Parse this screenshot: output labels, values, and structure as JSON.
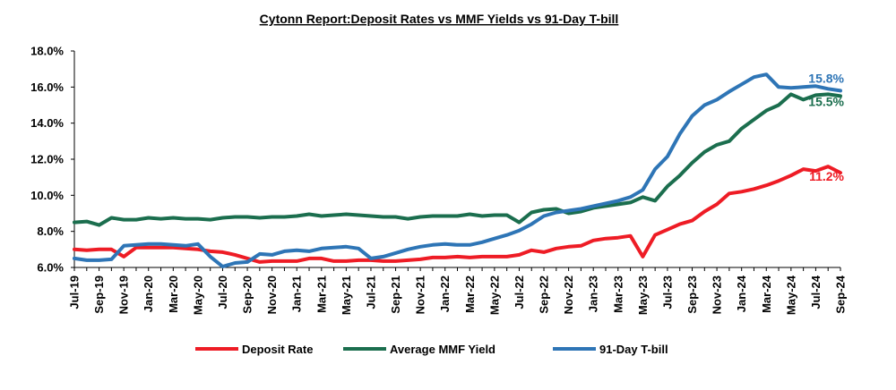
{
  "chart_data": {
    "type": "line",
    "title": "Cytonn Report:Deposit Rates vs MMF Yields vs 91-Day T-bill",
    "ylim": [
      6.0,
      18.0
    ],
    "y_ticks": [
      "6.0%",
      "8.0%",
      "10.0%",
      "12.0%",
      "14.0%",
      "16.0%",
      "18.0%"
    ],
    "y_tick_values": [
      6,
      8,
      10,
      12,
      14,
      16,
      18
    ],
    "x_tick_labels": [
      "Jul-19",
      "Sep-19",
      "Nov-19",
      "Jan-20",
      "Mar-20",
      "May-20",
      "Jul-20",
      "Sep-20",
      "Nov-20",
      "Jan-21",
      "Mar-21",
      "May-21",
      "Jul-21",
      "Sep-21",
      "Nov-21",
      "Jan-22",
      "Mar-22",
      "May-22",
      "Jul-22",
      "Sep-22",
      "Nov-22",
      "Jan-23",
      "Mar-23",
      "May-23",
      "Jul-23",
      "Sep-23",
      "Nov-23",
      "Jan-24",
      "Mar-24",
      "May-24",
      "Jul-24",
      "Sep-24"
    ],
    "categories": [
      "Jul-19",
      "Aug-19",
      "Sep-19",
      "Oct-19",
      "Nov-19",
      "Dec-19",
      "Jan-20",
      "Feb-20",
      "Mar-20",
      "Apr-20",
      "May-20",
      "Jun-20",
      "Jul-20",
      "Aug-20",
      "Sep-20",
      "Oct-20",
      "Nov-20",
      "Dec-20",
      "Jan-21",
      "Feb-21",
      "Mar-21",
      "Apr-21",
      "May-21",
      "Jun-21",
      "Jul-21",
      "Aug-21",
      "Sep-21",
      "Oct-21",
      "Nov-21",
      "Dec-21",
      "Jan-22",
      "Feb-22",
      "Mar-22",
      "Apr-22",
      "May-22",
      "Jun-22",
      "Jul-22",
      "Aug-22",
      "Sep-22",
      "Oct-22",
      "Nov-22",
      "Dec-22",
      "Jan-23",
      "Feb-23",
      "Mar-23",
      "Apr-23",
      "May-23",
      "Jun-23",
      "Jul-23",
      "Aug-23",
      "Sep-23",
      "Oct-23",
      "Nov-23",
      "Dec-23",
      "Jan-24",
      "Feb-24",
      "Mar-24",
      "Apr-24",
      "May-24",
      "Jun-24",
      "Jul-24",
      "Aug-24",
      "Sep-24"
    ],
    "series": [
      {
        "name": "Deposit Rate",
        "color": "#ee1c25",
        "end_label": "11.2%",
        "values": [
          7.0,
          6.95,
          7.0,
          7.0,
          6.6,
          7.1,
          7.1,
          7.1,
          7.1,
          7.05,
          7.0,
          6.9,
          6.85,
          6.7,
          6.5,
          6.3,
          6.35,
          6.35,
          6.35,
          6.5,
          6.5,
          6.35,
          6.35,
          6.4,
          6.4,
          6.35,
          6.35,
          6.4,
          6.45,
          6.55,
          6.55,
          6.6,
          6.55,
          6.6,
          6.6,
          6.6,
          6.7,
          6.95,
          6.85,
          7.05,
          7.15,
          7.2,
          7.5,
          7.6,
          7.65,
          7.75,
          6.6,
          7.8,
          8.1,
          8.4,
          8.6,
          9.1,
          9.5,
          10.1,
          10.2,
          10.35,
          10.55,
          10.8,
          11.1,
          11.45,
          11.35,
          11.6,
          11.25
        ]
      },
      {
        "name": "Average MMF Yield",
        "color": "#1b6e4e",
        "end_label": "15.5%",
        "values": [
          8.5,
          8.55,
          8.35,
          8.75,
          8.65,
          8.65,
          8.75,
          8.7,
          8.75,
          8.7,
          8.7,
          8.65,
          8.75,
          8.8,
          8.8,
          8.75,
          8.8,
          8.8,
          8.85,
          8.95,
          8.85,
          8.9,
          8.95,
          8.9,
          8.85,
          8.8,
          8.8,
          8.7,
          8.8,
          8.85,
          8.85,
          8.85,
          8.95,
          8.85,
          8.9,
          8.9,
          8.5,
          9.05,
          9.2,
          9.25,
          9.0,
          9.1,
          9.3,
          9.4,
          9.5,
          9.6,
          9.9,
          9.7,
          10.5,
          11.1,
          11.8,
          12.4,
          12.8,
          13.0,
          13.7,
          14.2,
          14.7,
          15.0,
          15.6,
          15.3,
          15.55,
          15.6,
          15.5
        ]
      },
      {
        "name": "91-Day T-bill",
        "color": "#2e75b6",
        "end_label": "15.8%",
        "values": [
          6.5,
          6.4,
          6.4,
          6.45,
          7.2,
          7.25,
          7.3,
          7.3,
          7.25,
          7.2,
          7.3,
          6.6,
          6.05,
          6.25,
          6.3,
          6.75,
          6.7,
          6.9,
          6.95,
          6.9,
          7.05,
          7.1,
          7.15,
          7.05,
          6.5,
          6.6,
          6.8,
          7.0,
          7.15,
          7.25,
          7.3,
          7.25,
          7.25,
          7.4,
          7.6,
          7.8,
          8.05,
          8.4,
          8.85,
          9.05,
          9.15,
          9.25,
          9.4,
          9.55,
          9.7,
          9.9,
          10.3,
          11.45,
          12.15,
          13.4,
          14.4,
          15.0,
          15.3,
          15.75,
          16.15,
          16.55,
          16.7,
          16.0,
          15.95,
          16.0,
          16.05,
          15.9,
          15.8
        ]
      }
    ],
    "legend_position": "bottom",
    "grid": false
  }
}
